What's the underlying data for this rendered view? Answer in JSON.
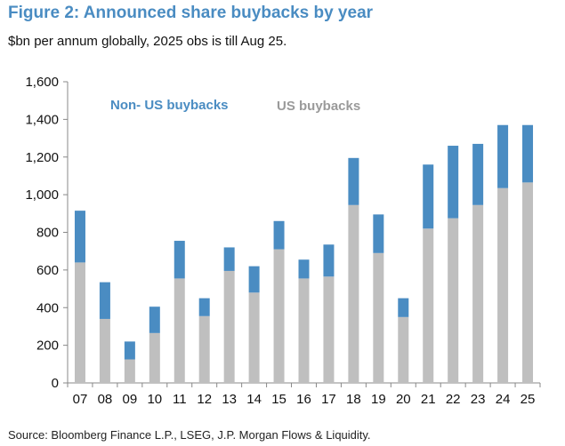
{
  "title": "Figure 2: Announced share buybacks by year",
  "subtitle": "$bn per annum globally, 2025 obs is till Aug 25.",
  "source": "Source: Bloomberg Finance L.P., LSEG, J.P. Morgan Flows & Liquidity.",
  "colors": {
    "us": "#BFBFBF",
    "non_us": "#4A8CC2",
    "title": "#4A8CC2"
  },
  "chart_data": {
    "type": "bar",
    "stacked": true,
    "title": "",
    "xlabel": "",
    "ylabel": "",
    "ylim": [
      0,
      1600
    ],
    "yticks": [
      0,
      200,
      400,
      600,
      800,
      1000,
      1200,
      1400,
      1600
    ],
    "ytick_labels": [
      "0",
      "200",
      "400",
      "600",
      "800",
      "1,000",
      "1,200",
      "1,400",
      "1,600"
    ],
    "categories": [
      "07",
      "08",
      "09",
      "10",
      "11",
      "12",
      "13",
      "14",
      "15",
      "16",
      "17",
      "18",
      "19",
      "20",
      "21",
      "22",
      "23",
      "24",
      "25"
    ],
    "series": [
      {
        "name": "US buybacks",
        "color": "#BFBFBF",
        "values": [
          640,
          340,
          125,
          265,
          555,
          355,
          595,
          480,
          710,
          555,
          565,
          945,
          690,
          350,
          820,
          875,
          945,
          1035,
          1065
        ]
      },
      {
        "name": "Non- US buybacks",
        "color": "#4A8CC2",
        "values": [
          275,
          195,
          95,
          140,
          200,
          95,
          125,
          140,
          150,
          100,
          170,
          250,
          205,
          100,
          340,
          385,
          325,
          335,
          305
        ]
      }
    ],
    "legend": "inside top-left, as text labels",
    "grid": false
  }
}
